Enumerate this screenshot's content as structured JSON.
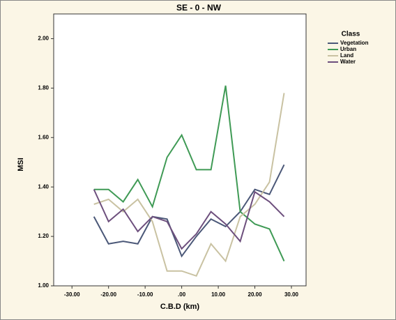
{
  "chart_data": {
    "type": "line",
    "title": "SE - 0 - NW",
    "x_label": "C.B.D (km)",
    "y_label": "MSI",
    "legend_title": "Class",
    "x": [
      -24,
      -20,
      -16,
      -12,
      -8,
      -4,
      0,
      4,
      8,
      12,
      16,
      20,
      24,
      28
    ],
    "series": [
      {
        "name": "Vegetation",
        "color": "#4b5878",
        "values": [
          1.28,
          1.17,
          1.18,
          1.17,
          1.28,
          1.27,
          1.12,
          1.2,
          1.27,
          1.24,
          1.3,
          1.39,
          1.37,
          1.49
        ]
      },
      {
        "name": "Urban",
        "color": "#3f9a55",
        "values": [
          1.39,
          1.39,
          1.34,
          1.43,
          1.32,
          1.52,
          1.61,
          1.47,
          1.47,
          1.81,
          1.3,
          1.25,
          1.23,
          1.1
        ]
      },
      {
        "name": "Land",
        "color": "#c9c2a2",
        "values": [
          1.33,
          1.35,
          1.3,
          1.35,
          1.26,
          1.06,
          1.06,
          1.04,
          1.17,
          1.1,
          1.28,
          1.33,
          1.42,
          1.78
        ]
      },
      {
        "name": "Water",
        "color": "#6d4f7d",
        "values": [
          1.39,
          1.26,
          1.31,
          1.22,
          1.28,
          1.26,
          1.15,
          1.21,
          1.3,
          1.25,
          1.18,
          1.38,
          1.34,
          1.28
        ]
      }
    ],
    "xlim": [
      -35,
      34
    ],
    "xticks": [
      {
        "value": -30,
        "label": "-30.00"
      },
      {
        "value": -20,
        "label": "-20.00"
      },
      {
        "value": -10,
        "label": "-10.00"
      },
      {
        "value": 0,
        "label": ".00"
      },
      {
        "value": 10,
        "label": "10.00"
      },
      {
        "value": 20,
        "label": "20.00"
      },
      {
        "value": 30,
        "label": "30.00"
      }
    ],
    "ylim": [
      1.0,
      2.1
    ],
    "yticks": [
      {
        "value": 1.0,
        "label": "1.00"
      },
      {
        "value": 1.2,
        "label": "1.20"
      },
      {
        "value": 1.4,
        "label": "1.40"
      },
      {
        "value": 1.6,
        "label": "1.60"
      },
      {
        "value": 1.8,
        "label": "1.80"
      },
      {
        "value": 2.0,
        "label": "2.00"
      }
    ]
  }
}
